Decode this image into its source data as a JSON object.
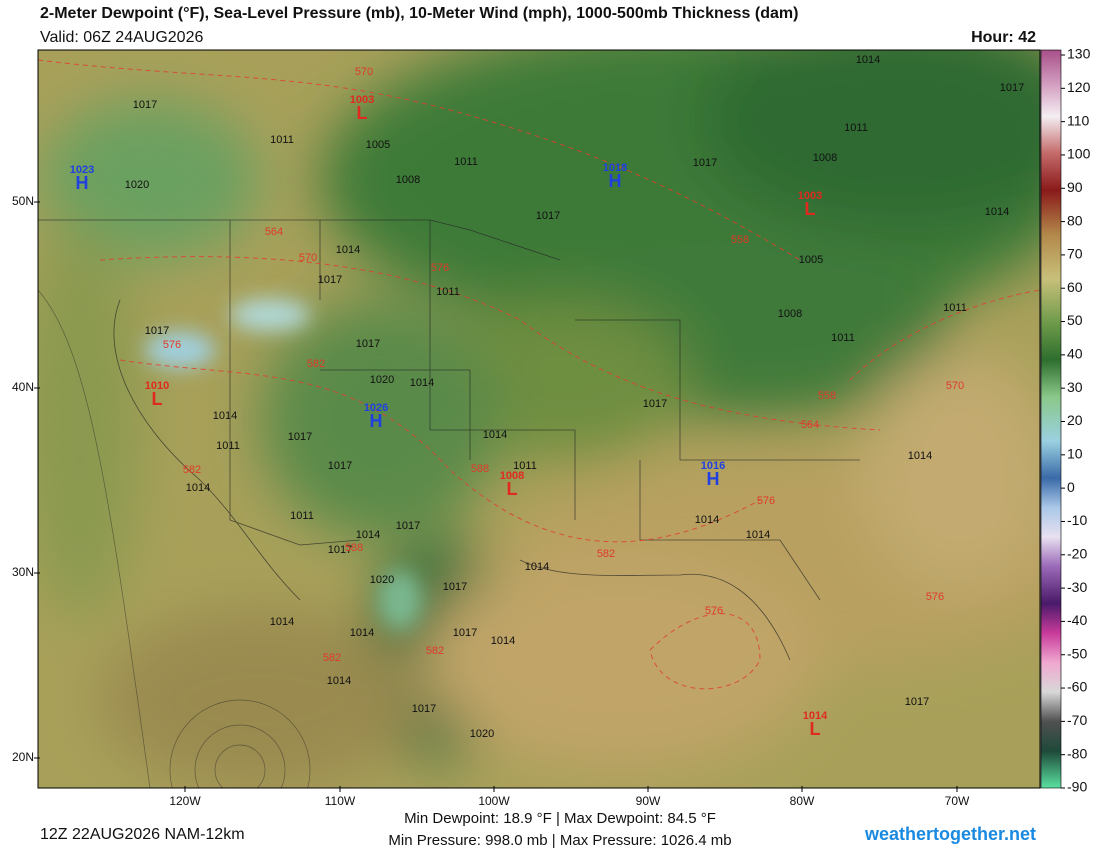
{
  "header": {
    "title": "2-Meter Dewpoint (°F), Sea-Level Pressure (mb), 10-Meter Wind (mph), 1000-500mb Thickness (dam)",
    "valid": "Valid: 06Z 24AUG2026",
    "hour": "Hour: 42"
  },
  "map": {
    "lat_labels": [
      "50N",
      "40N",
      "30N",
      "20N"
    ],
    "lon_labels": [
      "120W",
      "110W",
      "100W",
      "90W",
      "80W",
      "70W"
    ],
    "pressure_centers": [
      {
        "symbol": "L",
        "value": "1003"
      },
      {
        "symbol": "H",
        "value": "1023"
      },
      {
        "symbol": "H",
        "value": "1018"
      },
      {
        "symbol": "L",
        "value": "1003"
      },
      {
        "symbol": "L",
        "value": "1010"
      },
      {
        "symbol": "H",
        "value": "1026"
      },
      {
        "symbol": "L",
        "value": "1008"
      },
      {
        "symbol": "H",
        "value": "1016"
      },
      {
        "symbol": "L",
        "value": "1014"
      }
    ],
    "isobar_labels": [
      "1017",
      "1011",
      "1005",
      "1008",
      "1011",
      "1020",
      "1014",
      "1017",
      "1011",
      "1017",
      "1017",
      "1020",
      "1014",
      "1014",
      "1011",
      "1017",
      "1014",
      "1017",
      "1011",
      "1014",
      "1017",
      "1017",
      "1020",
      "1017",
      "1014",
      "1017",
      "1014",
      "1014",
      "1014",
      "1017",
      "1020",
      "1014",
      "1011",
      "1014",
      "1017",
      "1014",
      "1014",
      "1014",
      "1017",
      "1017",
      "1014",
      "1017",
      "1011",
      "1008",
      "1014",
      "1005",
      "1008",
      "1011",
      "1011",
      "1017"
    ],
    "thickness_labels": [
      "570",
      "564",
      "570",
      "576",
      "576",
      "582",
      "582",
      "588",
      "588",
      "582",
      "576",
      "564",
      "558",
      "558",
      "570",
      "576",
      "576",
      "582",
      "582"
    ]
  },
  "colorbar": {
    "ticks": [
      130,
      120,
      110,
      100,
      90,
      80,
      70,
      60,
      50,
      40,
      30,
      20,
      10,
      0,
      -10,
      -20,
      -30,
      -40,
      -50,
      -60,
      -70,
      -80,
      -90
    ]
  },
  "footer": {
    "run": "12Z 22AUG2026 NAM-12km",
    "dewpoint_stats": "Min Dewpoint:  18.9 °F | Max Dewpoint:  84.5 °F",
    "pressure_stats": "Min Pressure: 998.0 mb | Max Pressure: 1026.4 mb",
    "brand": "weathertogether.net"
  }
}
